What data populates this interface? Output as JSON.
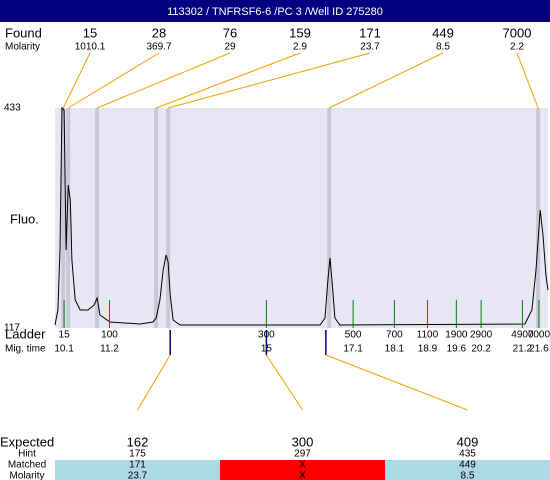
{
  "chart_data": {
    "type": "electropherogram",
    "title": "113302 / TNFRSF6-6 /PC 3 /Well ID 275280",
    "y_label": "Fluo.",
    "ylim": [
      117,
      433
    ],
    "yticks": [
      117,
      433
    ],
    "xlim": [
      9.88,
      21.82
    ],
    "found_label": "Found",
    "found_molarity_label": "Molarity",
    "found": {
      "sizes": [
        15,
        28,
        76,
        159,
        171,
        449,
        7000
      ],
      "molarity": [
        1010.1,
        369.7,
        29,
        2.9,
        23.7,
        8.5,
        2.2
      ],
      "times": [
        10.08,
        10.2,
        10.9,
        12.33,
        12.62,
        16.52,
        21.58
      ]
    },
    "ladder_label": "Ladder",
    "mig_time_label": "Mig. time",
    "ladder": {
      "sizes": [
        15,
        100,
        300,
        500,
        700,
        1100,
        1900,
        2900,
        4900,
        7000
      ],
      "times": [
        10.1,
        11.2,
        15,
        17.1,
        18.1,
        18.9,
        19.6,
        20.2,
        21.2,
        21.6
      ]
    },
    "trace": {
      "color": "#000000",
      "x": [
        9.88,
        9.95,
        10.0,
        10.05,
        10.1,
        10.15,
        10.2,
        10.25,
        10.29,
        10.37,
        10.49,
        10.68,
        10.83,
        10.9,
        10.97,
        11.21,
        11.94,
        12.25,
        12.33,
        12.42,
        12.5,
        12.57,
        12.62,
        12.67,
        12.74,
        12.91,
        16.3,
        16.42,
        16.49,
        16.54,
        16.59,
        16.66,
        16.78,
        21.26,
        21.43,
        21.53,
        21.63,
        21.7,
        21.77,
        21.82
      ],
      "y": [
        121.3,
        142.9,
        229,
        433,
        430,
        229,
        322.4,
        300.9,
        214.7,
        157.2,
        142.9,
        142.9,
        150,
        160.1,
        135.7,
        125.6,
        122.7,
        125.6,
        131.4,
        157.2,
        200.3,
        221.9,
        211.8,
        164.4,
        128.5,
        121.3,
        121.3,
        131.4,
        186,
        217.5,
        183.1,
        131.4,
        121.3,
        122.7,
        142.9,
        200.3,
        286.5,
        250.6,
        193.1,
        171.6
      ]
    },
    "expected_label": "Expected",
    "hint_label": "Hint",
    "matched_label": "Matched",
    "molarity_label": "Molarity",
    "expected": {
      "sizes": [
        162,
        300,
        409
      ],
      "hints": [
        175,
        297,
        435
      ],
      "matched": [
        171,
        "X",
        449
      ],
      "molarity": [
        23.7,
        "X",
        8.5
      ],
      "times": [
        12.67,
        15,
        16.44
      ],
      "colors": [
        "#add8e6",
        "#ff0000",
        "#add8e6"
      ]
    }
  }
}
